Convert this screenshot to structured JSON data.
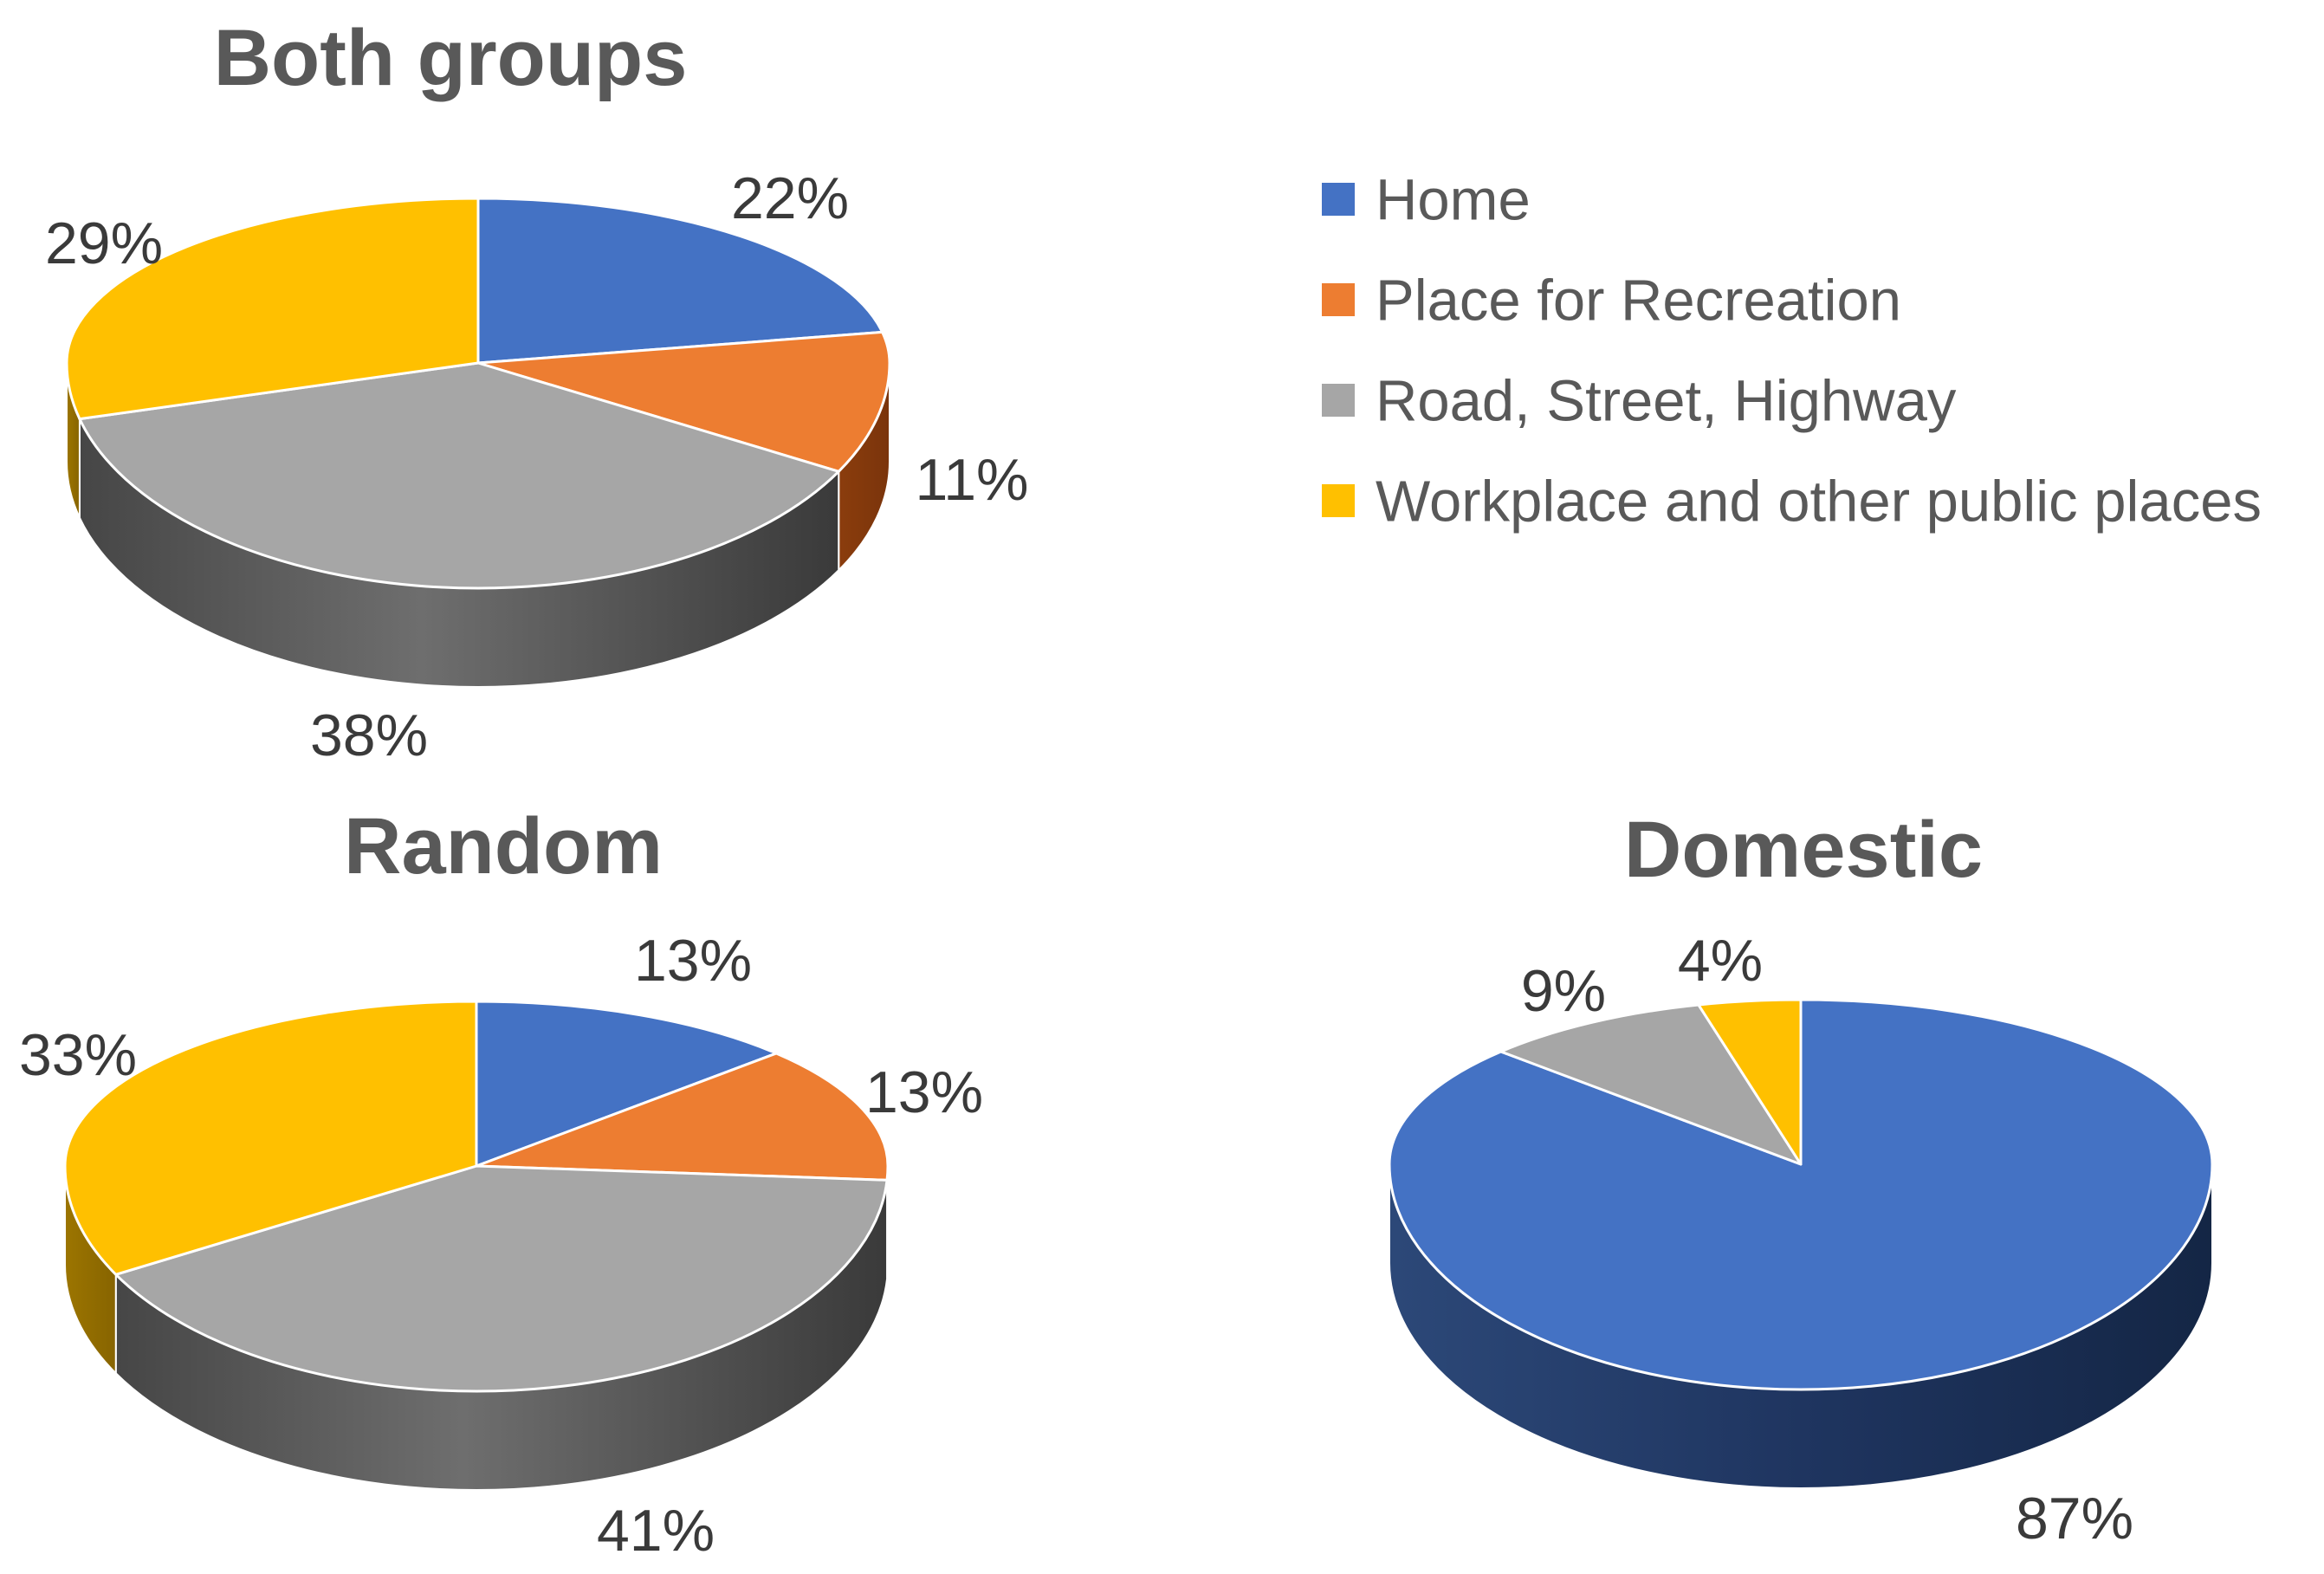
{
  "figure": {
    "background": "#FFFFFF",
    "title_color": "#595959",
    "label_color": "#3A3A3A"
  },
  "colors": {
    "home_blue": "#4472C4",
    "recreation_orange": "#ED7D31",
    "road_gray": "#A6A6A6",
    "workplace_yellow": "#FFC000"
  },
  "legend": {
    "position": "top-right",
    "items": [
      {
        "label": "Home",
        "color": "home_blue"
      },
      {
        "label": "Place for Recreation",
        "color": "recreation_orange"
      },
      {
        "label": "Road, Street, Highway",
        "color": "road_gray"
      },
      {
        "label": "Workplace and other public places",
        "color": "workplace_yellow"
      }
    ]
  },
  "chart_data": [
    {
      "type": "pie",
      "style": "3d",
      "title": "Both groups",
      "unit": "%",
      "slices": [
        {
          "label": "Home",
          "value": 22,
          "pct_label": "22%",
          "color": "home_blue"
        },
        {
          "label": "Place for Recreation",
          "value": 11,
          "pct_label": "11%",
          "color": "recreation_orange"
        },
        {
          "label": "Road, Street, Highway",
          "value": 38,
          "pct_label": "38%",
          "color": "road_gray"
        },
        {
          "label": "Workplace and other public places",
          "value": 29,
          "pct_label": "29%",
          "color": "workplace_yellow"
        }
      ]
    },
    {
      "type": "pie",
      "style": "3d",
      "title": "Random",
      "unit": "%",
      "slices": [
        {
          "label": "Home",
          "value": 13,
          "pct_label": "13%",
          "color": "home_blue"
        },
        {
          "label": "Place for Recreation",
          "value": 13,
          "pct_label": "13%",
          "color": "recreation_orange"
        },
        {
          "label": "Road, Street, Highway",
          "value": 41,
          "pct_label": "41%",
          "color": "road_gray"
        },
        {
          "label": "Workplace and other public places",
          "value": 33,
          "pct_label": "33%",
          "color": "workplace_yellow"
        }
      ]
    },
    {
      "type": "pie",
      "style": "3d",
      "title": "Domestic",
      "unit": "%",
      "slices": [
        {
          "label": "Home",
          "value": 87,
          "pct_label": "87%",
          "color": "home_blue"
        },
        {
          "label": "Road, Street, Highway",
          "value": 9,
          "pct_label": "9%",
          "color": "road_gray"
        },
        {
          "label": "Workplace and other public places",
          "value": 4,
          "pct_label": "4%",
          "color": "workplace_yellow"
        }
      ]
    }
  ]
}
